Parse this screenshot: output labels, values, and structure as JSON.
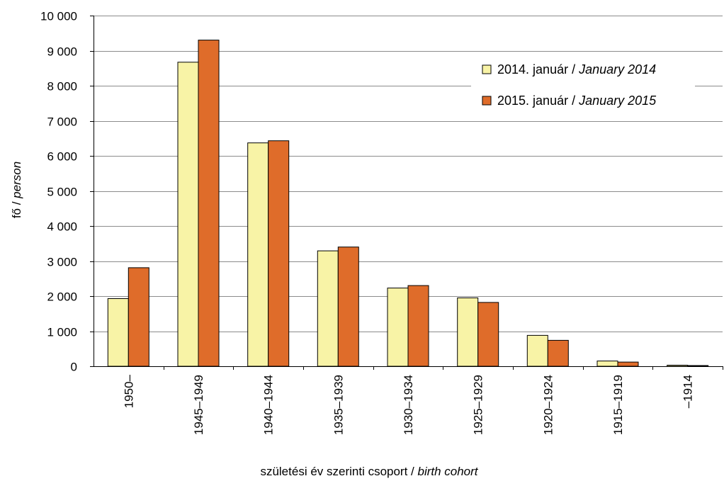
{
  "chart_data": {
    "type": "bar",
    "ylim": [
      0,
      10000
    ],
    "yticks": [
      0,
      1000,
      2000,
      3000,
      4000,
      5000,
      6000,
      7000,
      8000,
      9000,
      10000
    ],
    "ytick_labels": [
      "0",
      "1 000",
      "2 000",
      "3 000",
      "4 000",
      "5 000",
      "6 000",
      "7 000",
      "8 000",
      "9 000",
      "10 000"
    ],
    "categories": [
      "1950–",
      "1945–1949",
      "1940–1944",
      "1935–1939",
      "1930–1934",
      "1925–1929",
      "1920–1924",
      "1915–1919",
      "–1914"
    ],
    "series": [
      {
        "name_main": "2014. január / ",
        "name_italic": "January 2014",
        "color": "#f8f3a6",
        "values": [
          1930,
          8670,
          6370,
          3290,
          2230,
          1950,
          880,
          150,
          30
        ]
      },
      {
        "name_main": "2015. január / ",
        "name_italic": "January 2015",
        "color": "#df6c2a",
        "values": [
          2810,
          9300,
          6430,
          3400,
          2300,
          1820,
          740,
          120,
          20
        ]
      }
    ],
    "xlabel_main": "születési év szerinti csoport / ",
    "xlabel_italic": "birth cohort",
    "ylabel_main": "fő / ",
    "ylabel_italic": "person",
    "grid": true,
    "legend_position": "top-right"
  }
}
